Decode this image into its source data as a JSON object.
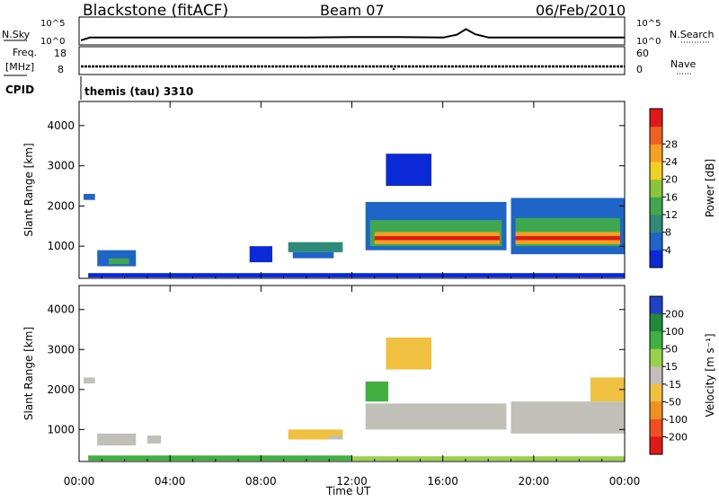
{
  "header": {
    "station": "Blackstone (fitACF)",
    "beam": "Beam 07",
    "date": "06/Feb/2010"
  },
  "noise_panel": {
    "left_label": "N.Sky",
    "left_ticks": [
      "10^5",
      "10^0"
    ],
    "right_label": "N.Search",
    "right_ticks": [
      "10^5",
      "10^0"
    ],
    "noise_profile": [
      {
        "t": 0.0,
        "sky": 0.3
      },
      {
        "t": 0.4,
        "sky": 0.6
      },
      {
        "t": 2.0,
        "sky": 0.6
      },
      {
        "t": 4.0,
        "sky": 0.6
      },
      {
        "t": 6.0,
        "sky": 0.6
      },
      {
        "t": 8.0,
        "sky": 0.6
      },
      {
        "t": 10.0,
        "sky": 0.6
      },
      {
        "t": 12.0,
        "sky": 0.65
      },
      {
        "t": 14.0,
        "sky": 0.65
      },
      {
        "t": 16.0,
        "sky": 0.6
      },
      {
        "t": 16.6,
        "sky": 0.9
      },
      {
        "t": 17.0,
        "sky": 1.5
      },
      {
        "t": 17.4,
        "sky": 0.95
      },
      {
        "t": 18.0,
        "sky": 0.6
      },
      {
        "t": 20.0,
        "sky": 0.6
      },
      {
        "t": 22.0,
        "sky": 0.6
      },
      {
        "t": 24.0,
        "sky": 0.6
      }
    ]
  },
  "freq_panel": {
    "left_label_line1": "Freq.",
    "left_label_line2": "[MHz]",
    "left_ticks": [
      "18",
      "8"
    ],
    "right_label": "Nave",
    "right_ticks": [
      "60",
      "0"
    ],
    "cpid_label": "CPID",
    "program": "themis (tau) 3310"
  },
  "chart_data": [
    {
      "type": "heatmap",
      "title": "Power",
      "ylabel": "Slant Range [km]",
      "xlabel": "Time UT",
      "xlim": [
        0,
        24
      ],
      "ylim": [
        200,
        4600
      ],
      "x_ticks": [
        "00:00",
        "04:00",
        "08:00",
        "12:00",
        "16:00",
        "20:00",
        "00:00"
      ],
      "y_ticks": [
        1000,
        2000,
        3000,
        4000
      ],
      "colorbar": {
        "label": "Power [dB]",
        "ticks": [
          "4",
          "8",
          "12",
          "16",
          "20",
          "24",
          "28"
        ],
        "colors": [
          "#0a2ad8",
          "#1f64c8",
          "#2f8a78",
          "#3fa84e",
          "#8ac43a",
          "#f0d020",
          "#f6a020",
          "#f06020",
          "#e01818"
        ]
      },
      "regions": [
        {
          "t0": 0.2,
          "t1": 0.7,
          "r0": 2150,
          "r1": 2300,
          "level": 1
        },
        {
          "t0": 0.8,
          "t1": 2.5,
          "r0": 500,
          "r1": 900,
          "level": 1
        },
        {
          "t0": 1.3,
          "t1": 2.2,
          "r0": 550,
          "r1": 700,
          "level": 3
        },
        {
          "t0": 7.5,
          "t1": 8.5,
          "r0": 600,
          "r1": 1000,
          "level": 0
        },
        {
          "t0": 9.2,
          "t1": 11.6,
          "r0": 850,
          "r1": 1100,
          "level": 2
        },
        {
          "t0": 9.4,
          "t1": 11.2,
          "r0": 700,
          "r1": 850,
          "level": 1
        },
        {
          "t0": 12.6,
          "t1": 18.8,
          "r0": 900,
          "r1": 2100,
          "level": 1
        },
        {
          "t0": 12.8,
          "t1": 18.6,
          "r0": 1000,
          "r1": 1650,
          "level": 3
        },
        {
          "t0": 13.0,
          "t1": 18.5,
          "r0": 1050,
          "r1": 1350,
          "level": 6
        },
        {
          "t0": 13.0,
          "t1": 18.5,
          "r0": 1150,
          "r1": 1250,
          "level": 8
        },
        {
          "t0": 19.0,
          "t1": 24.0,
          "r0": 800,
          "r1": 2200,
          "level": 1
        },
        {
          "t0": 19.2,
          "t1": 23.8,
          "r0": 1000,
          "r1": 1700,
          "level": 3
        },
        {
          "t0": 19.2,
          "t1": 23.8,
          "r0": 1050,
          "r1": 1350,
          "level": 6
        },
        {
          "t0": 19.2,
          "t1": 23.8,
          "r0": 1150,
          "r1": 1250,
          "level": 8
        },
        {
          "t0": 13.5,
          "t1": 15.5,
          "r0": 2500,
          "r1": 3300,
          "level": 0
        },
        {
          "t0": 0.4,
          "t1": 24.0,
          "r0": 220,
          "r1": 330,
          "level": 0
        }
      ]
    },
    {
      "type": "heatmap",
      "title": "Velocity",
      "ylabel": "Slant Range [km]",
      "xlabel": "Time UT",
      "xlim": [
        0,
        24
      ],
      "ylim": [
        200,
        4600
      ],
      "x_ticks": [
        "00:00",
        "04:00",
        "08:00",
        "12:00",
        "16:00",
        "20:00",
        "00:00"
      ],
      "y_ticks": [
        1000,
        2000,
        3000,
        4000
      ],
      "colorbar": {
        "label": "Velocity [m s⁻¹]",
        "ticks": [
          "200",
          "100",
          "50",
          "15",
          "-15",
          "-50",
          "-100",
          "-200"
        ],
        "colors": [
          "#2040c8",
          "#208a3a",
          "#40b040",
          "#9ad04a",
          "#c0c0b8",
          "#f0c040",
          "#f09020",
          "#f05020",
          "#e01818"
        ]
      },
      "regions": [
        {
          "t0": 0.2,
          "t1": 0.7,
          "r0": 2150,
          "r1": 2300,
          "level": 4
        },
        {
          "t0": 0.8,
          "t1": 2.5,
          "r0": 600,
          "r1": 900,
          "level": 4
        },
        {
          "t0": 3.0,
          "t1": 3.6,
          "r0": 650,
          "r1": 850,
          "level": 4
        },
        {
          "t0": 9.2,
          "t1": 11.6,
          "r0": 750,
          "r1": 1000,
          "level": 5
        },
        {
          "t0": 11.0,
          "t1": 11.6,
          "r0": 750,
          "r1": 850,
          "level": 4
        },
        {
          "t0": 12.6,
          "t1": 18.8,
          "r0": 1000,
          "r1": 1650,
          "level": 4
        },
        {
          "t0": 19.0,
          "t1": 24.0,
          "r0": 900,
          "r1": 1700,
          "level": 4
        },
        {
          "t0": 12.6,
          "t1": 13.6,
          "r0": 1700,
          "r1": 2200,
          "level": 2
        },
        {
          "t0": 13.5,
          "t1": 15.5,
          "r0": 2500,
          "r1": 3300,
          "level": 5
        },
        {
          "t0": 22.5,
          "t1": 24.0,
          "r0": 1700,
          "r1": 2300,
          "level": 5
        },
        {
          "t0": 0.4,
          "t1": 12.0,
          "r0": 220,
          "r1": 350,
          "level": 2
        },
        {
          "t0": 12.0,
          "t1": 24.0,
          "r0": 220,
          "r1": 330,
          "level": 3
        }
      ]
    }
  ]
}
